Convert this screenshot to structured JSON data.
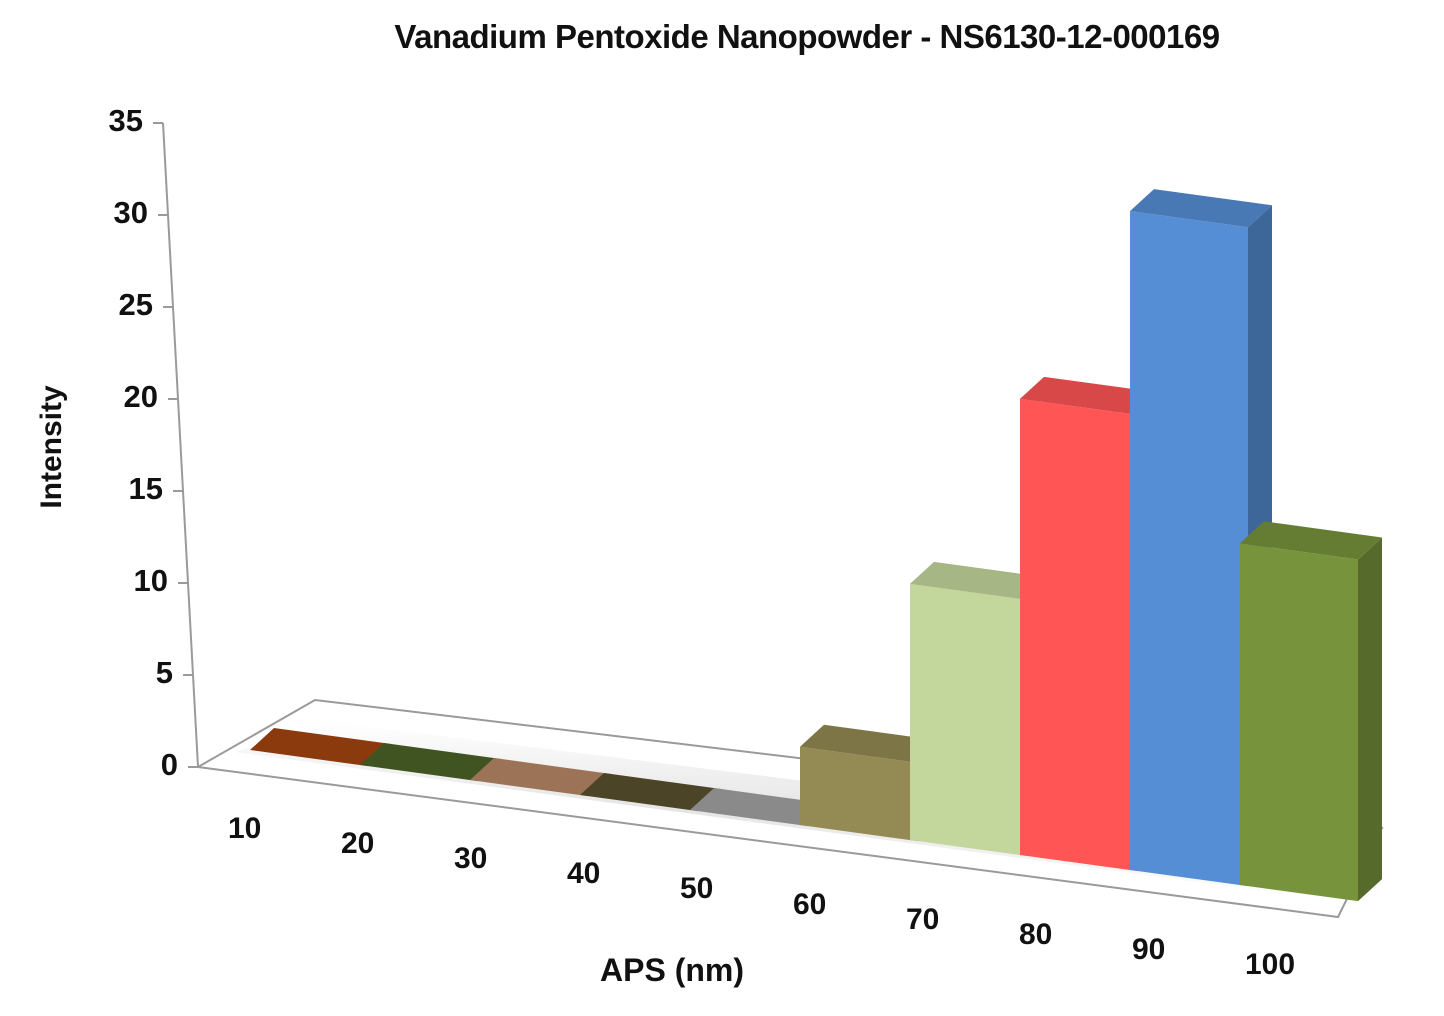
{
  "chart_data": {
    "type": "bar",
    "subtype": "3d-column",
    "title": "Vanadium Pentoxide Nanopowder - NS6130-12-000169",
    "xlabel": "APS (nm)",
    "ylabel": "Intensity",
    "categories": [
      "10",
      "20",
      "30",
      "40",
      "50",
      "60",
      "70",
      "80",
      "90",
      "100"
    ],
    "values": [
      0,
      0,
      0,
      0,
      0,
      4,
      13,
      23,
      33,
      17
    ],
    "ylim": [
      0,
      35
    ],
    "yticks": [
      "0",
      "5",
      "10",
      "15",
      "20",
      "25",
      "30",
      "35"
    ],
    "grid": false,
    "legend": "none",
    "colors": [
      "#8B3A0E",
      "#3F5420",
      "#9C7356",
      "#4B4426",
      "#8A8A8A",
      "#948A54",
      "#C3D69B",
      "#FF5555",
      "#558ED5",
      "#77933C"
    ]
  }
}
